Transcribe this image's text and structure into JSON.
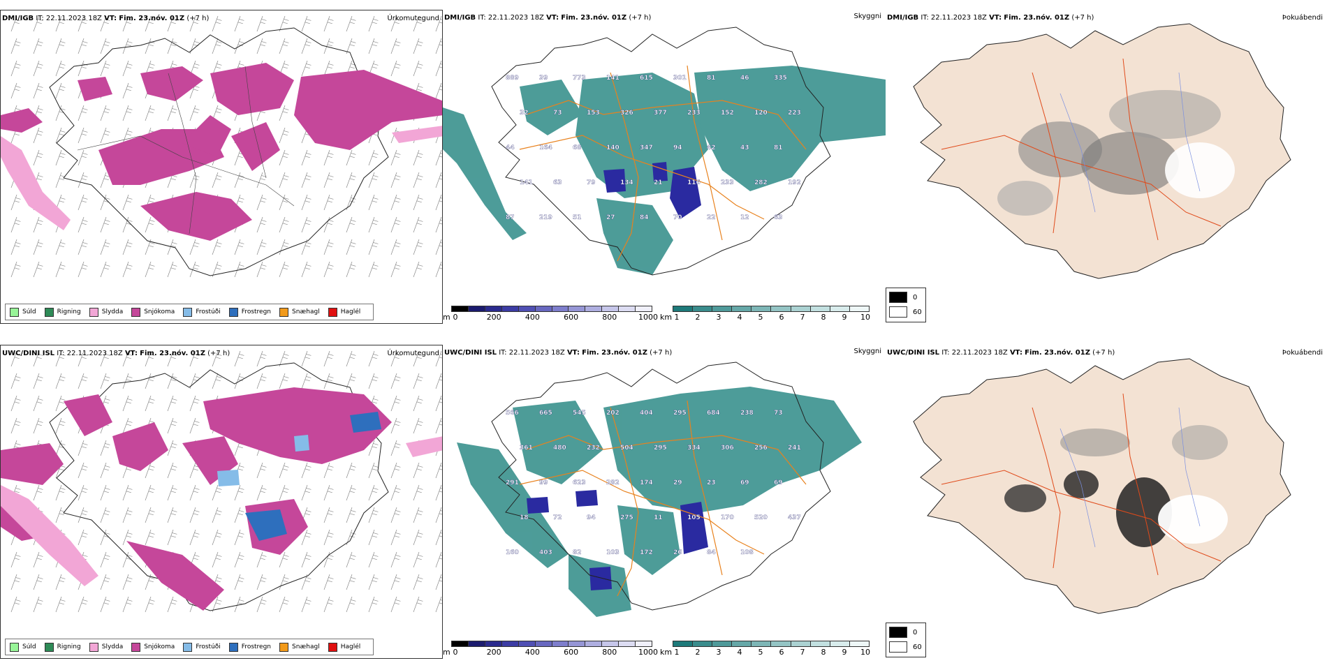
{
  "rows": [
    {
      "model": "DMI/IGB",
      "it_label": "IT:",
      "it_value": "22.11.2023 18Z",
      "vt_label": "VT:",
      "vt_value": "Fim. 23.nóv. 01Z",
      "lead": "(+7 h)",
      "precip_title": "Úrkomutegund",
      "cloud_title": "Skyggni",
      "fog_title": "Þokuábendi",
      "cloud_labels": [
        "889",
        "39",
        "773",
        "141",
        "615",
        "301",
        "81",
        "46",
        "335",
        "32",
        "73",
        "153",
        "326",
        "377",
        "233",
        "152",
        "120",
        "223",
        "44",
        "164",
        "68",
        "140",
        "347",
        "94",
        "42",
        "43",
        "81",
        "141",
        "63",
        "79",
        "134",
        "21",
        "116",
        "233",
        "282",
        "192",
        "87",
        "219",
        "51",
        "27",
        "84",
        "70",
        "22",
        "12",
        "63"
      ]
    },
    {
      "model": "UWC/DINI ISL",
      "it_label": "IT:",
      "it_value": "22.11.2023 18Z",
      "vt_label": "VT:",
      "vt_value": "Fim. 23.nóv. 01Z",
      "lead": "(+7 h)",
      "precip_title": "Úrkomutegund",
      "cloud_title": "Skyggni",
      "fog_title": "Þokuábendi",
      "cloud_labels": [
        "566",
        "665",
        "545",
        "202",
        "404",
        "295",
        "684",
        "238",
        "73",
        "361",
        "480",
        "232",
        "504",
        "295",
        "334",
        "306",
        "256",
        "241",
        "291",
        "99",
        "623",
        "282",
        "174",
        "29",
        "23",
        "69",
        "69",
        "18",
        "72",
        "94",
        "275",
        "11",
        "105",
        "170",
        "520",
        "437",
        "160",
        "403",
        "82",
        "103",
        "172",
        "26",
        "84",
        "108"
      ]
    }
  ],
  "precip_legend": [
    {
      "label": "Súld",
      "color": "#98f598"
    },
    {
      "label": "Rigning",
      "color": "#2e8b57"
    },
    {
      "label": "Slydda",
      "color": "#f2a6d6"
    },
    {
      "label": "Snjókoma",
      "color": "#c5479a"
    },
    {
      "label": "Frostúði",
      "color": "#85bce8"
    },
    {
      "label": "Frostregn",
      "color": "#2e6fbd"
    },
    {
      "label": "Snæhagl",
      "color": "#f29a1a"
    },
    {
      "label": "Haglél",
      "color": "#e01010"
    }
  ],
  "elev_bar": {
    "unit": "m",
    "ticks": [
      "0",
      "200",
      "400",
      "600",
      "800",
      "1000"
    ],
    "colors": [
      "#000000",
      "#1b1b6e",
      "#2a2a8e",
      "#3c3ca4",
      "#5050b4",
      "#6868c0",
      "#7e7ecc",
      "#9696d6",
      "#aeaee0",
      "#c6c6ea",
      "#dcdcf2",
      "#f0f0fa"
    ]
  },
  "km_bar": {
    "unit": "km",
    "ticks": [
      "1",
      "2",
      "3",
      "4",
      "5",
      "6",
      "7",
      "8",
      "9",
      "10"
    ],
    "colors": [
      "#1e7a7a",
      "#3a8c8c",
      "#4f9a9a",
      "#66a8a8",
      "#7db6b6",
      "#94c4c4",
      "#abd2d2",
      "#c2e0e0",
      "#d8ecec",
      "#eef7f7"
    ]
  },
  "fog_legend": [
    {
      "label": "0",
      "color": "#000000"
    },
    {
      "label": "60",
      "color": "#ffffff"
    }
  ],
  "colors": {
    "snow": "#c5479a",
    "sleet": "#f2a6d6",
    "freeze_rain": "#2e6fbd",
    "freeze_drizzle": "#85bce8",
    "teal": "#2e8b87",
    "purple": "#2a2aa0",
    "land": "#f3e2d3",
    "road": "#e04a1a",
    "orange_line": "#e8821e"
  }
}
